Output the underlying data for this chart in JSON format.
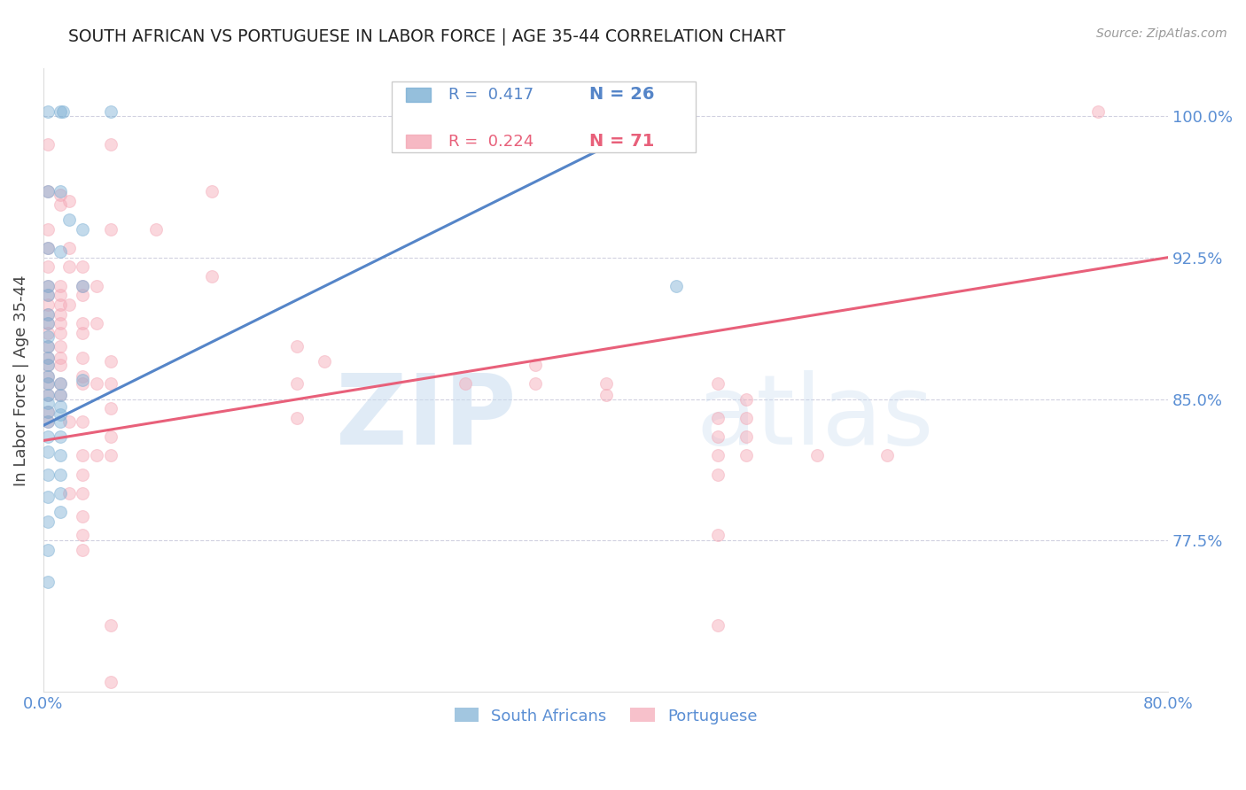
{
  "title": "SOUTH AFRICAN VS PORTUGUESE IN LABOR FORCE | AGE 35-44 CORRELATION CHART",
  "source": "Source: ZipAtlas.com",
  "ylabel": "In Labor Force | Age 35-44",
  "watermark_zip": "ZIP",
  "watermark_atlas": "atlas",
  "legend_blue_r": "0.417",
  "legend_blue_n": "26",
  "legend_pink_r": "0.224",
  "legend_pink_n": "71",
  "legend_blue_label": "South Africans",
  "legend_pink_label": "Portuguese",
  "xmin": 0.0,
  "xmax": 0.8,
  "ymin": 0.695,
  "ymax": 1.025,
  "yticks": [
    0.775,
    0.85,
    0.925,
    1.0
  ],
  "ytick_labels": [
    "77.5%",
    "85.0%",
    "92.5%",
    "100.0%"
  ],
  "xticks": [
    0.0,
    0.1,
    0.2,
    0.3,
    0.4,
    0.5,
    0.6,
    0.7,
    0.8
  ],
  "xtick_labels": [
    "0.0%",
    "",
    "",
    "",
    "",
    "",
    "",
    "",
    "80.0%"
  ],
  "blue_scatter": [
    [
      0.003,
      1.002
    ],
    [
      0.012,
      1.002
    ],
    [
      0.014,
      1.002
    ],
    [
      0.048,
      1.002
    ],
    [
      0.003,
      0.96
    ],
    [
      0.012,
      0.96
    ],
    [
      0.018,
      0.945
    ],
    [
      0.028,
      0.94
    ],
    [
      0.003,
      0.93
    ],
    [
      0.012,
      0.928
    ],
    [
      0.003,
      0.91
    ],
    [
      0.003,
      0.905
    ],
    [
      0.003,
      0.895
    ],
    [
      0.003,
      0.89
    ],
    [
      0.003,
      0.883
    ],
    [
      0.003,
      0.878
    ],
    [
      0.003,
      0.872
    ],
    [
      0.003,
      0.868
    ],
    [
      0.003,
      0.862
    ],
    [
      0.003,
      0.858
    ],
    [
      0.003,
      0.852
    ],
    [
      0.003,
      0.848
    ],
    [
      0.003,
      0.843
    ],
    [
      0.003,
      0.838
    ],
    [
      0.003,
      0.83
    ],
    [
      0.003,
      0.822
    ],
    [
      0.003,
      0.81
    ],
    [
      0.003,
      0.798
    ],
    [
      0.003,
      0.785
    ],
    [
      0.003,
      0.77
    ],
    [
      0.003,
      0.753
    ],
    [
      0.012,
      0.858
    ],
    [
      0.012,
      0.852
    ],
    [
      0.012,
      0.846
    ],
    [
      0.012,
      0.842
    ],
    [
      0.012,
      0.838
    ],
    [
      0.012,
      0.83
    ],
    [
      0.012,
      0.82
    ],
    [
      0.012,
      0.81
    ],
    [
      0.012,
      0.8
    ],
    [
      0.012,
      0.79
    ],
    [
      0.028,
      0.91
    ],
    [
      0.028,
      0.86
    ],
    [
      0.45,
      0.91
    ]
  ],
  "pink_scatter": [
    [
      0.003,
      0.985
    ],
    [
      0.048,
      0.985
    ],
    [
      0.003,
      0.96
    ],
    [
      0.012,
      0.958
    ],
    [
      0.012,
      0.953
    ],
    [
      0.018,
      0.955
    ],
    [
      0.003,
      0.94
    ],
    [
      0.003,
      0.93
    ],
    [
      0.018,
      0.93
    ],
    [
      0.048,
      0.94
    ],
    [
      0.003,
      0.92
    ],
    [
      0.018,
      0.92
    ],
    [
      0.028,
      0.92
    ],
    [
      0.003,
      0.91
    ],
    [
      0.012,
      0.91
    ],
    [
      0.028,
      0.91
    ],
    [
      0.038,
      0.91
    ],
    [
      0.003,
      0.905
    ],
    [
      0.012,
      0.905
    ],
    [
      0.028,
      0.905
    ],
    [
      0.003,
      0.9
    ],
    [
      0.012,
      0.9
    ],
    [
      0.018,
      0.9
    ],
    [
      0.003,
      0.895
    ],
    [
      0.012,
      0.895
    ],
    [
      0.003,
      0.89
    ],
    [
      0.012,
      0.89
    ],
    [
      0.028,
      0.89
    ],
    [
      0.038,
      0.89
    ],
    [
      0.003,
      0.885
    ],
    [
      0.012,
      0.885
    ],
    [
      0.028,
      0.885
    ],
    [
      0.003,
      0.878
    ],
    [
      0.012,
      0.878
    ],
    [
      0.003,
      0.872
    ],
    [
      0.012,
      0.872
    ],
    [
      0.028,
      0.872
    ],
    [
      0.003,
      0.868
    ],
    [
      0.012,
      0.868
    ],
    [
      0.003,
      0.862
    ],
    [
      0.028,
      0.862
    ],
    [
      0.003,
      0.858
    ],
    [
      0.012,
      0.858
    ],
    [
      0.028,
      0.858
    ],
    [
      0.038,
      0.858
    ],
    [
      0.003,
      0.852
    ],
    [
      0.012,
      0.852
    ],
    [
      0.003,
      0.843
    ],
    [
      0.003,
      0.838
    ],
    [
      0.018,
      0.838
    ],
    [
      0.028,
      0.838
    ],
    [
      0.028,
      0.82
    ],
    [
      0.038,
      0.82
    ],
    [
      0.028,
      0.81
    ],
    [
      0.018,
      0.8
    ],
    [
      0.028,
      0.8
    ],
    [
      0.028,
      0.788
    ],
    [
      0.028,
      0.778
    ],
    [
      0.028,
      0.77
    ],
    [
      0.048,
      0.87
    ],
    [
      0.048,
      0.858
    ],
    [
      0.048,
      0.845
    ],
    [
      0.048,
      0.83
    ],
    [
      0.048,
      0.82
    ],
    [
      0.08,
      0.94
    ],
    [
      0.12,
      0.96
    ],
    [
      0.12,
      0.915
    ],
    [
      0.18,
      0.878
    ],
    [
      0.18,
      0.858
    ],
    [
      0.18,
      0.84
    ],
    [
      0.2,
      0.87
    ],
    [
      0.3,
      0.858
    ],
    [
      0.35,
      0.868
    ],
    [
      0.35,
      0.858
    ],
    [
      0.4,
      0.858
    ],
    [
      0.4,
      0.852
    ],
    [
      0.48,
      0.858
    ],
    [
      0.48,
      0.84
    ],
    [
      0.48,
      0.83
    ],
    [
      0.48,
      0.82
    ],
    [
      0.48,
      0.81
    ],
    [
      0.5,
      0.85
    ],
    [
      0.5,
      0.84
    ],
    [
      0.5,
      0.83
    ],
    [
      0.5,
      0.82
    ],
    [
      0.55,
      0.82
    ],
    [
      0.6,
      0.82
    ],
    [
      0.75,
      1.002
    ],
    [
      0.48,
      0.778
    ],
    [
      0.48,
      0.73
    ],
    [
      0.048,
      0.73
    ],
    [
      0.048,
      0.7
    ]
  ],
  "blue_line": [
    [
      0.0,
      0.836
    ],
    [
      0.45,
      1.002
    ]
  ],
  "pink_line": [
    [
      0.0,
      0.828
    ],
    [
      0.8,
      0.925
    ]
  ],
  "blue_color": "#7BAFD4",
  "pink_color": "#F4A7B5",
  "blue_line_color": "#5585C8",
  "pink_line_color": "#E8607A",
  "title_color": "#222222",
  "axis_label_color": "#444444",
  "tick_color": "#5B8FD4",
  "grid_color": "#CCCCDD",
  "background_color": "#FFFFFF",
  "marker_size": 100,
  "marker_alpha": 0.45,
  "marker_edge_alpha": 0.7,
  "marker_linewidth": 0.8
}
